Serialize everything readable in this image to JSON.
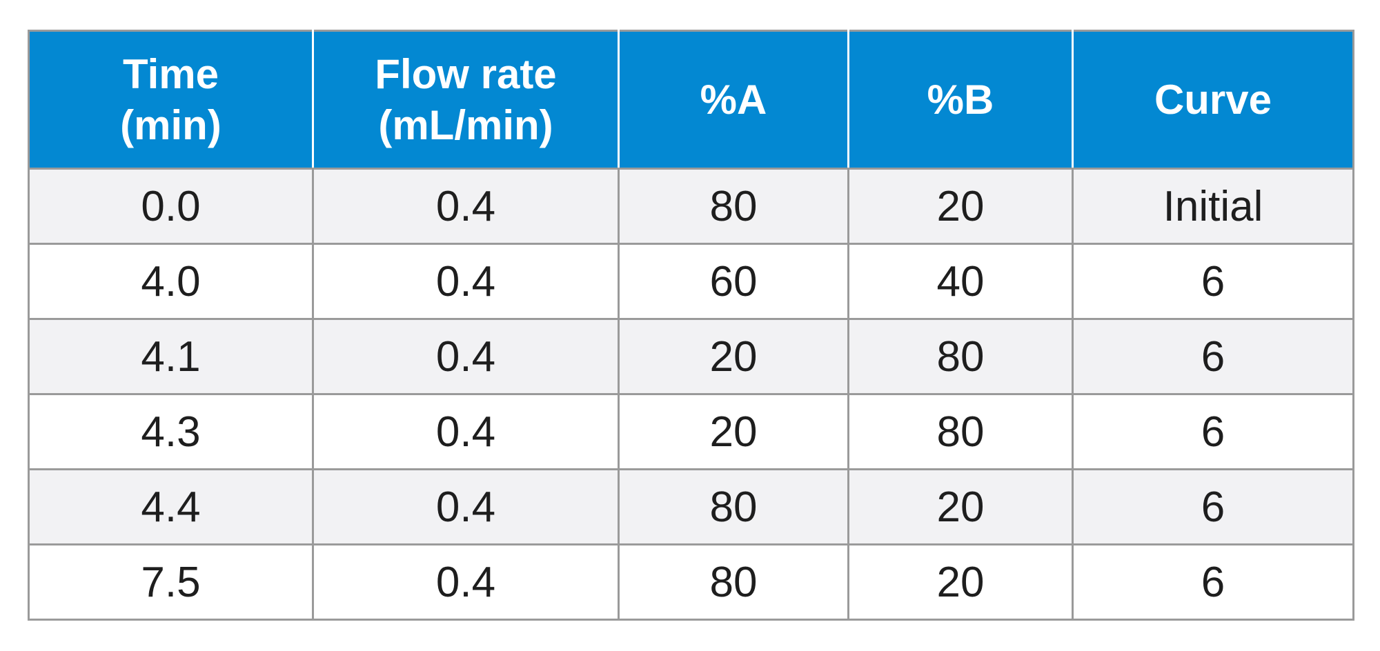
{
  "table": {
    "headers": [
      [
        "Time",
        "(min)"
      ],
      [
        "Flow rate",
        "(mL/min)"
      ],
      [
        "%A"
      ],
      [
        "%B"
      ],
      [
        "Curve"
      ]
    ],
    "rows": [
      [
        "0.0",
        "0.4",
        "80",
        "20",
        "Initial"
      ],
      [
        "4.0",
        "0.4",
        "60",
        "40",
        "6"
      ],
      [
        "4.1",
        "0.4",
        "20",
        "80",
        "6"
      ],
      [
        "4.3",
        "0.4",
        "20",
        "80",
        "6"
      ],
      [
        "4.4",
        "0.4",
        "80",
        "20",
        "6"
      ],
      [
        "7.5",
        "0.4",
        "80",
        "20",
        "6"
      ]
    ]
  },
  "colors": {
    "header_background": "#0388d2",
    "header_text": "#ffffff",
    "row_alt_background": "#f2f2f4",
    "border": "#9a9a9a",
    "body_text": "#1e1e1e"
  }
}
